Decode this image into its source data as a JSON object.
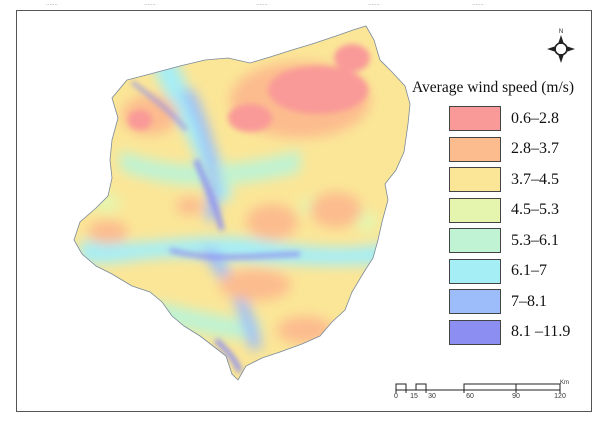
{
  "legend": {
    "title": "Average wind speed (m/s)",
    "classes": [
      {
        "label": "0.6–2.8",
        "color": "#f99a98"
      },
      {
        "label": "2.8–3.7",
        "color": "#fcbc8e"
      },
      {
        "label": "3.7–4.5",
        "color": "#fbe697"
      },
      {
        "label": "4.5–5.3",
        "color": "#e6f5ae"
      },
      {
        "label": "5.3–6.1",
        "color": "#bff3d3"
      },
      {
        "label": "6.1–7",
        "color": "#a6eef6"
      },
      {
        "label": "7–8.1",
        "color": "#9cbdf9"
      },
      {
        "label": "8.1 –11.9",
        "color": "#8c8ef1"
      }
    ]
  },
  "scale_bar": {
    "unit": "Km",
    "ticks": [
      "0",
      "15",
      "30",
      "60",
      "90",
      "120"
    ]
  },
  "north_arrow": {
    "icon": "north-arrow-compass-icon",
    "label": "N"
  }
}
